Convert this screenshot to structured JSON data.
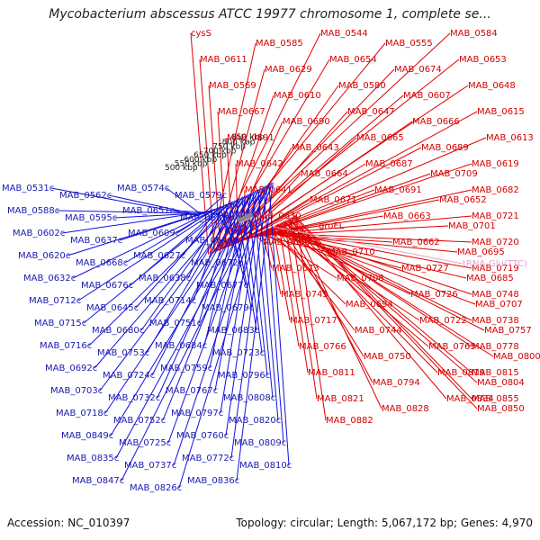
{
  "title": "Mycobacterium abscessus ATCC 19977 chromosome 1, complete se...",
  "footer": {
    "accession": "Accession: NC_010397",
    "summary": "Topology: circular; Length: 5,067,172 bp; Genes: 4,970"
  },
  "colors": {
    "forward": "#e00000",
    "reverse": "#1010e0",
    "rna": "#e8a0d0",
    "backbone": "#888888",
    "gc_tick": "#1a8a1a"
  },
  "scale_ticks": [
    "500 kbp",
    "550 kbp",
    "600 kbp",
    "650 kbp",
    "700 kbp",
    "750 kbp",
    "800 kbp",
    "850 kbp"
  ],
  "forward_labels": [
    "cysS",
    "MAB_0585",
    "MAB_0544",
    "MAB_0555",
    "MAB_0584",
    "MAB_0611",
    "MAB_0629",
    "MAB_0654",
    "MAB_0674",
    "MAB_0653",
    "MAB_0569",
    "MAB_0610",
    "MAB_0580",
    "MAB_0607",
    "MAB_0648",
    "MAB_0667",
    "MAB_0690",
    "MAB_0647",
    "MAB_0666",
    "MAB_0615",
    "MAB_0591",
    "MAB_0643",
    "MAB_0665",
    "MAB_0689",
    "MAB_0613",
    "MAB_0642",
    "MAB_0664",
    "MAB_0687",
    "MAB_0709",
    "MAB_0619",
    "MAB_0641",
    "MAB_0671",
    "MAB_0691",
    "MAB_0652",
    "MAB_0682",
    "MAB_0630",
    "groEL",
    "MAB_0663",
    "MAB_0701",
    "MAB_0721",
    "MAB_0686",
    "MAB_0710",
    "MAB_0662",
    "MAB_0695",
    "MAB_0720",
    "MAB_0673",
    "MAB_0708",
    "MAB_0727",
    "MAB_0685",
    "MAB_0719",
    "MAB_0745",
    "MAB_0694",
    "MAB_0726",
    "MAB_0707",
    "MAB_0748",
    "MAB_0717",
    "MAB_0744",
    "MAB_0722",
    "MAB_0757",
    "MAB_0738",
    "MAB_0766",
    "MAB_0750",
    "MAB_0765",
    "MAB_0800",
    "MAB_0778",
    "MAB_0811",
    "MAB_0794",
    "MAB_0819",
    "MAB_0804",
    "MAB_0815",
    "MAB_0821",
    "MAB_0828",
    "MAB_0834",
    "MAB_0850",
    "MAB_0855",
    "MAB_0882"
  ],
  "rna_label": "tRNA-Glu(TTC)",
  "reverse_labels": [
    "MAB_0531c",
    "MAB_0562c",
    "MAB_0574c",
    "MAB_0579c",
    "MAB_0588c",
    "MAB_0595c",
    "MAB_0651c",
    "MAB_0633c",
    "MAB_0602c",
    "MAB_0637c",
    "MAB_0609c",
    "MAB_0644c",
    "MAB_0620c",
    "MAB_0668c",
    "MAB_0627c",
    "MAB_0672c",
    "MAB_0632c",
    "MAB_0676c",
    "MAB_0638c",
    "MAB_0677c",
    "MAB_0712c",
    "MAB_0645c",
    "MAB_0714c",
    "MAB_0679c",
    "MAB_0715c",
    "MAB_0680c",
    "MAB_0751c",
    "MAB_0683c",
    "MAB_0716c",
    "MAB_0753c",
    "MAB_0684c",
    "MAB_0723c",
    "MAB_0692c",
    "MAB_0724c",
    "MAB_0759c",
    "MAB_0796c",
    "MAB_0703c",
    "MAB_0732c",
    "MAB_0767c",
    "MAB_0808c",
    "MAB_0718c",
    "MAB_0752c",
    "MAB_0797c",
    "MAB_0820c",
    "MAB_0849c",
    "MAB_0725c",
    "MAB_0760c",
    "MAB_0809c",
    "MAB_0835c",
    "MAB_0737c",
    "MAB_0772c",
    "MAB_0810c",
    "MAB_0847c",
    "MAB_0826c",
    "MAB_0836c"
  ]
}
